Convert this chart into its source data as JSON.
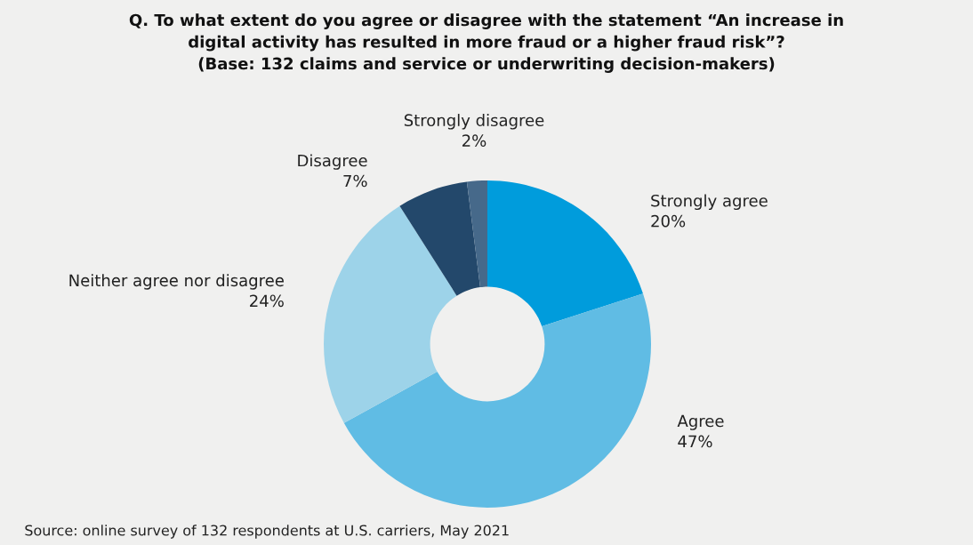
{
  "chart_data": {
    "type": "donut",
    "title": "Q. To what extent do you agree or disagree with the statement “An increase in\ndigital activity has resulted in more fraud or a higher fraud risk”?\n(Base: 132 claims and service or underwriting decision-makers)",
    "categories": [
      "Strongly agree",
      "Agree",
      "Neither agree nor disagree",
      "Disagree",
      "Strongly disagree"
    ],
    "values": [
      20,
      47,
      24,
      7,
      2
    ],
    "value_labels": [
      "20%",
      "47%",
      "24%",
      "7%",
      "2%"
    ],
    "colors": [
      "#009cdc",
      "#60bce4",
      "#9dd3e9",
      "#23486b",
      "#46698a"
    ],
    "annotations": [
      "Source: online survey of 132 respondents at U.S. carriers, May 2021"
    ]
  }
}
